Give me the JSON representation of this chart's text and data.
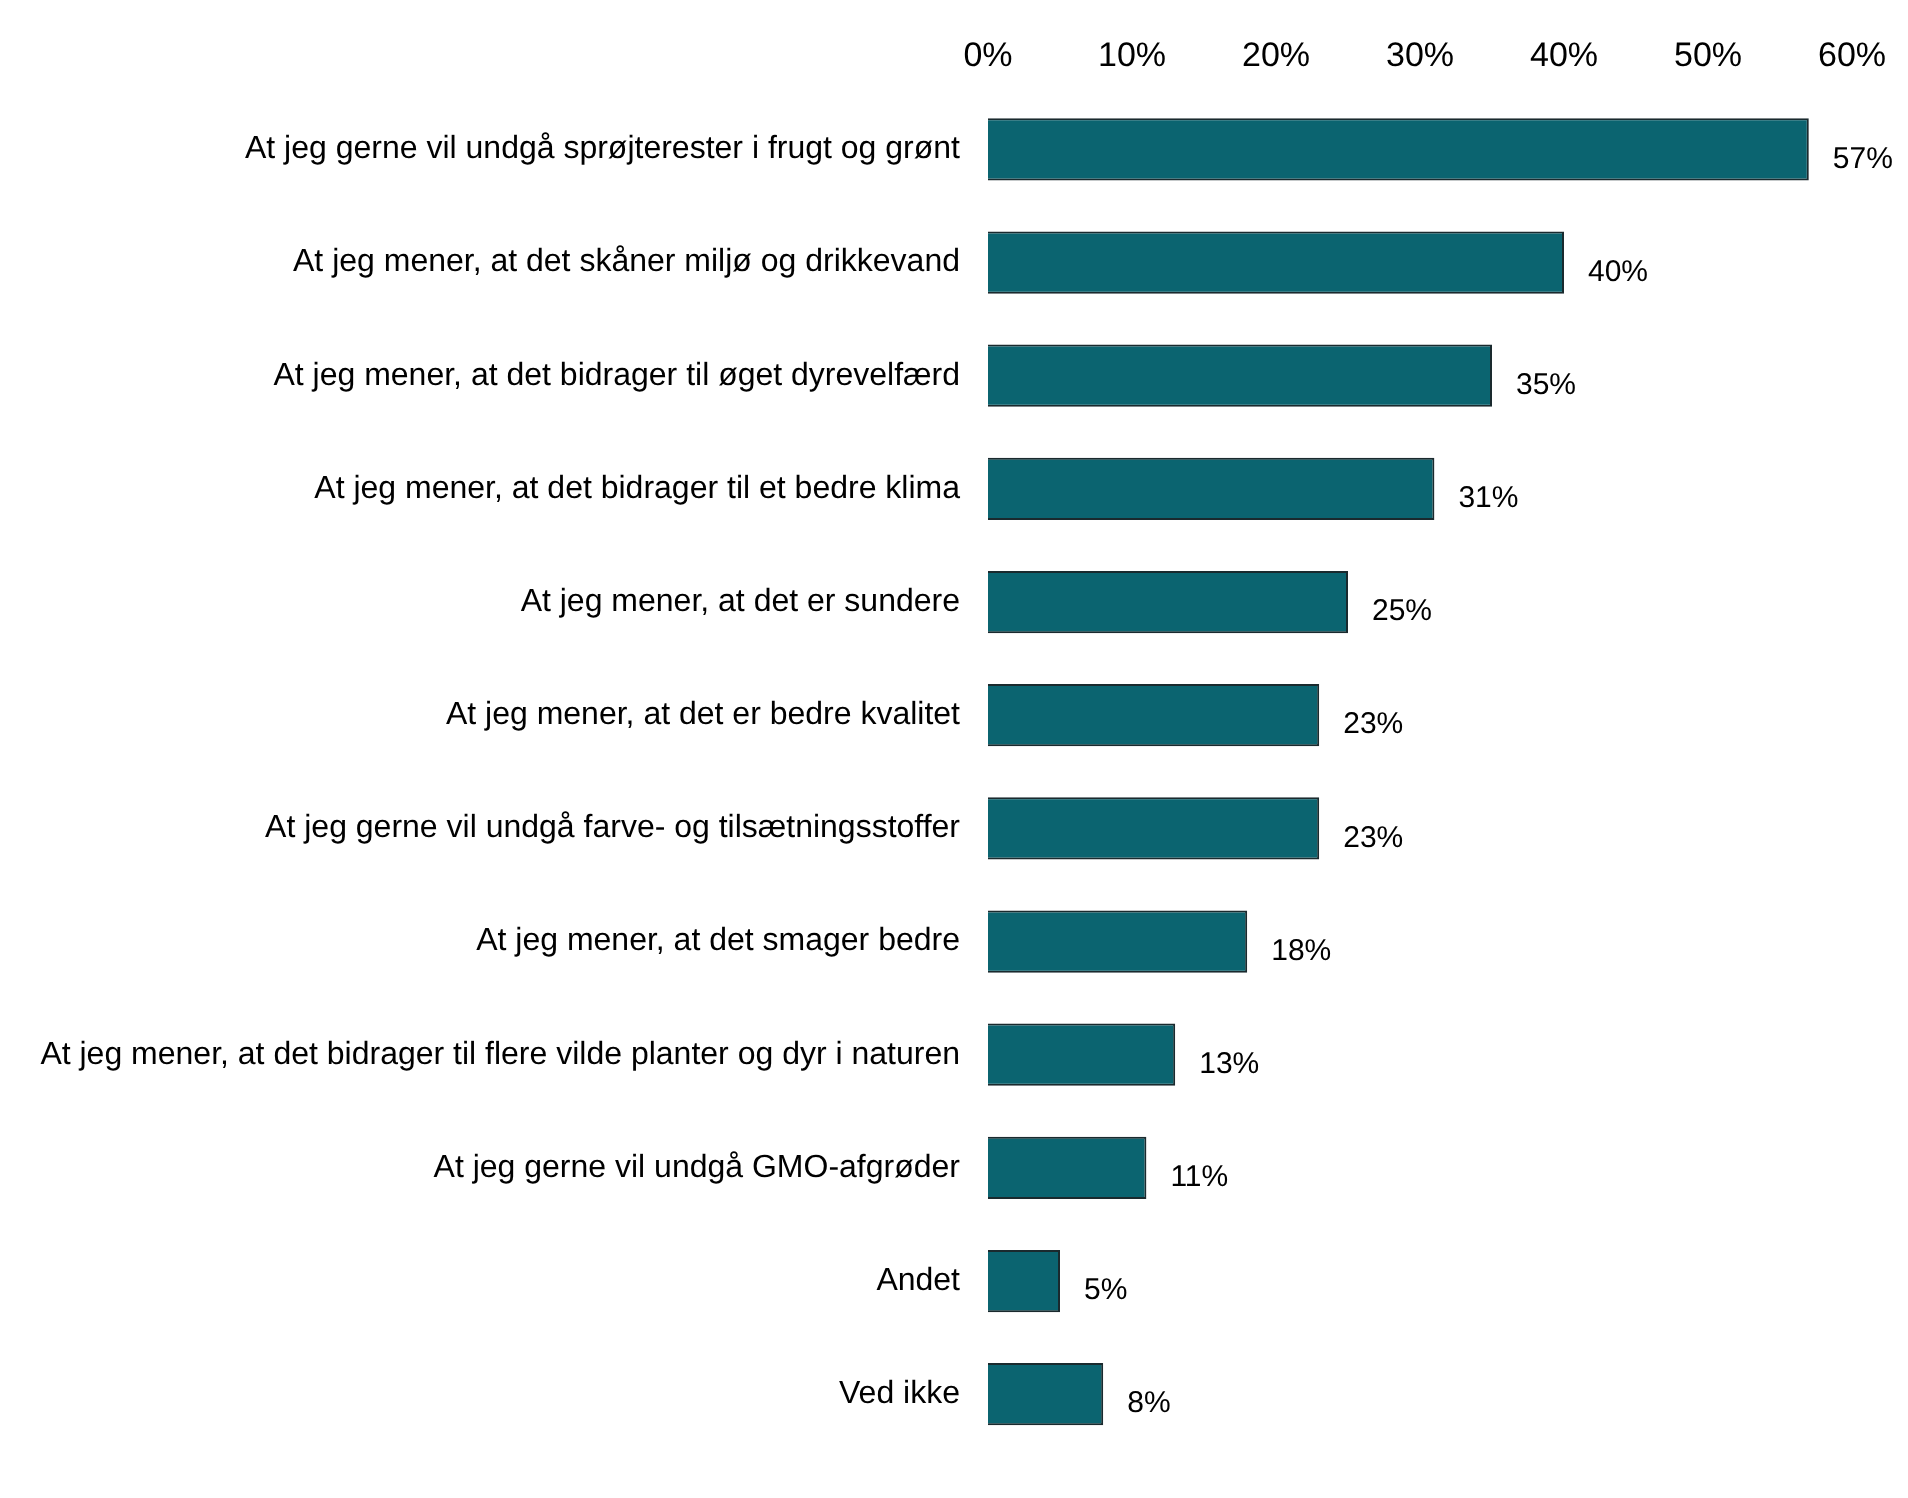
{
  "chart_data": {
    "type": "bar",
    "orientation": "horizontal",
    "categories": [
      "At jeg gerne vil undgå sprøjterester i frugt og grønt",
      "At jeg mener, at det skåner miljø og drikkevand",
      "At jeg mener, at det bidrager til øget dyrevelfærd",
      "At jeg mener, at det bidrager til et bedre klima",
      "At jeg mener, at det er sundere",
      "At jeg mener, at det er bedre kvalitet",
      "At jeg gerne vil undgå farve- og tilsætningsstoffer",
      "At jeg mener, at det smager bedre",
      "At jeg mener, at det bidrager til flere vilde planter og dyr i naturen",
      "At jeg gerne vil undgå GMO-afgrøder",
      "Andet",
      "Ved ikke"
    ],
    "values": [
      57,
      40,
      35,
      31,
      25,
      23,
      23,
      18,
      13,
      11,
      5,
      8
    ],
    "value_labels": [
      "57%",
      "40%",
      "35%",
      "31%",
      "25%",
      "23%",
      "23%",
      "18%",
      "13%",
      "11%",
      "5%",
      "8%"
    ],
    "color": "#0b6470",
    "xlim": [
      0,
      60
    ],
    "xticks": [
      {
        "value": 0,
        "label": "0%"
      },
      {
        "value": 10,
        "label": "10%"
      },
      {
        "value": 20,
        "label": "20%"
      },
      {
        "value": 30,
        "label": "30%"
      },
      {
        "value": 40,
        "label": "40%"
      },
      {
        "value": 50,
        "label": "50%"
      },
      {
        "value": 60,
        "label": "60%"
      }
    ],
    "grid": false,
    "legend": false
  }
}
